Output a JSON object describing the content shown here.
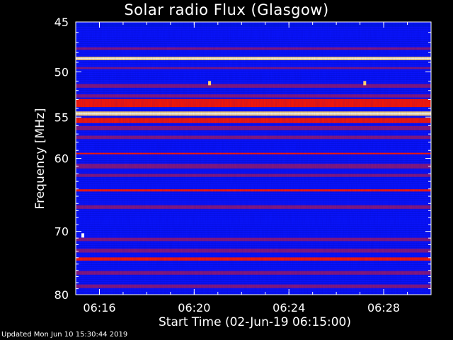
{
  "header": {
    "title": "Solar radio Flux (Glasgow)"
  },
  "footer": {
    "updated": "Updated Mon Jun 10 15:30:44 2019"
  },
  "chart_data": {
    "type": "heatmap",
    "title": "Solar radio Flux (Glasgow)",
    "xlabel": "Start Time (02-Jun-19 06:15:00)",
    "ylabel": "Frequency [MHz]",
    "x_ticks": [
      {
        "label": "06:16",
        "minutes": 1
      },
      {
        "label": "06:20",
        "minutes": 5
      },
      {
        "label": "06:24",
        "minutes": 9
      },
      {
        "label": "06:28",
        "minutes": 13
      }
    ],
    "xlim_minutes": [
      0,
      15
    ],
    "y_scale": "log",
    "ylim": [
      45,
      80
    ],
    "y_ticks": [
      45,
      50,
      55,
      60,
      70,
      80
    ],
    "colors": {
      "background": "#0a14ff",
      "low": "#0018e6",
      "mid": "#8a1a7a",
      "high": "#ff1a00",
      "peak": "#ffd070",
      "max": "#ffffff"
    },
    "bands": [
      {
        "freq": 45.3,
        "width": 0.25,
        "level": "low"
      },
      {
        "freq": 47.6,
        "width": 0.25,
        "level": "mid"
      },
      {
        "freq": 48.6,
        "width": 0.35,
        "level": "peak"
      },
      {
        "freq": 49.6,
        "width": 0.2,
        "level": "mid"
      },
      {
        "freq": 51.5,
        "width": 0.4,
        "level": "mid"
      },
      {
        "freq": 52.6,
        "width": 0.35,
        "level": "mid"
      },
      {
        "freq": 53.4,
        "width": 0.9,
        "level": "high"
      },
      {
        "freq": 54.6,
        "width": 0.5,
        "level": "peak"
      },
      {
        "freq": 55.4,
        "width": 0.6,
        "level": "high"
      },
      {
        "freq": 56.3,
        "width": 0.5,
        "level": "mid"
      },
      {
        "freq": 57.4,
        "width": 0.4,
        "level": "mid"
      },
      {
        "freq": 59.4,
        "width": 0.2,
        "level": "high"
      },
      {
        "freq": 61.0,
        "width": 0.6,
        "level": "mid"
      },
      {
        "freq": 62.2,
        "width": 0.4,
        "level": "mid"
      },
      {
        "freq": 64.2,
        "width": 0.3,
        "level": "high"
      },
      {
        "freq": 66.5,
        "width": 0.5,
        "level": "mid"
      },
      {
        "freq": 71.2,
        "width": 0.5,
        "level": "mid"
      },
      {
        "freq": 72.9,
        "width": 0.6,
        "level": "mid"
      },
      {
        "freq": 74.2,
        "width": 0.5,
        "level": "high"
      },
      {
        "freq": 76.4,
        "width": 0.6,
        "level": "mid"
      },
      {
        "freq": 78.6,
        "width": 0.6,
        "level": "mid"
      }
    ],
    "bursts": [
      {
        "minutes": 0.3,
        "freq": 70.6,
        "level": "max"
      },
      {
        "minutes": 5.65,
        "freq": 51.2,
        "level": "peak"
      },
      {
        "minutes": 12.2,
        "freq": 51.2,
        "level": "peak"
      }
    ]
  }
}
